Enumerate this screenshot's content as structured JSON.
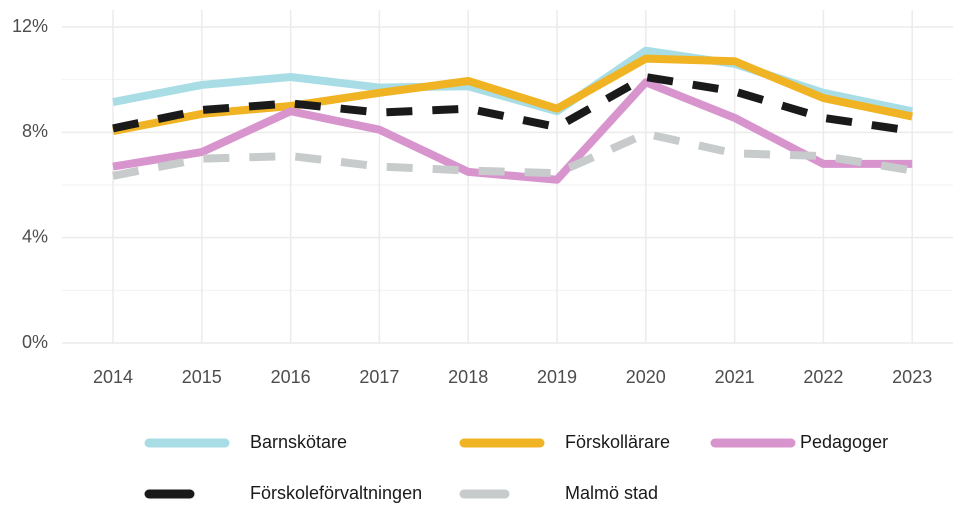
{
  "chart_data": {
    "type": "line",
    "categories": [
      "2014",
      "2015",
      "2016",
      "2017",
      "2018",
      "2019",
      "2020",
      "2021",
      "2022",
      "2023"
    ],
    "series": [
      {
        "name": "Barnskötare",
        "color": "#a8dde6",
        "dashed": false,
        "values": [
          9.15,
          9.8,
          10.1,
          9.7,
          9.75,
          8.8,
          11.1,
          10.6,
          9.5,
          8.8
        ]
      },
      {
        "name": "Förskollärare",
        "color": "#f0b323",
        "dashed": false,
        "values": [
          8.05,
          8.7,
          9.0,
          9.5,
          9.95,
          8.9,
          10.8,
          10.7,
          9.3,
          8.6
        ]
      },
      {
        "name": "Pedagoger",
        "color": "#d895cd",
        "dashed": false,
        "values": [
          6.7,
          7.25,
          8.8,
          8.1,
          6.5,
          6.2,
          9.9,
          8.55,
          6.8,
          6.8
        ]
      },
      {
        "name": "Förskoleförvaltningen",
        "color": "#1a1a1a",
        "dashed": true,
        "values": [
          8.15,
          8.85,
          9.1,
          8.75,
          8.9,
          8.2,
          10.1,
          9.55,
          8.55,
          8.05
        ]
      },
      {
        "name": "Malmö stad",
        "color": "#c8cbcb",
        "dashed": true,
        "values": [
          6.35,
          7.0,
          7.1,
          6.7,
          6.55,
          6.45,
          7.95,
          7.2,
          7.1,
          6.55
        ]
      }
    ],
    "ylim": [
      0,
      12
    ],
    "yticks": [
      {
        "value": 0,
        "label": "0%"
      },
      {
        "value": 4,
        "label": "4%"
      },
      {
        "value": 8,
        "label": "8%"
      },
      {
        "value": 12,
        "label": "12%"
      }
    ],
    "yminor": [
      2,
      6,
      10
    ],
    "grid": true,
    "legend": "bottom"
  }
}
